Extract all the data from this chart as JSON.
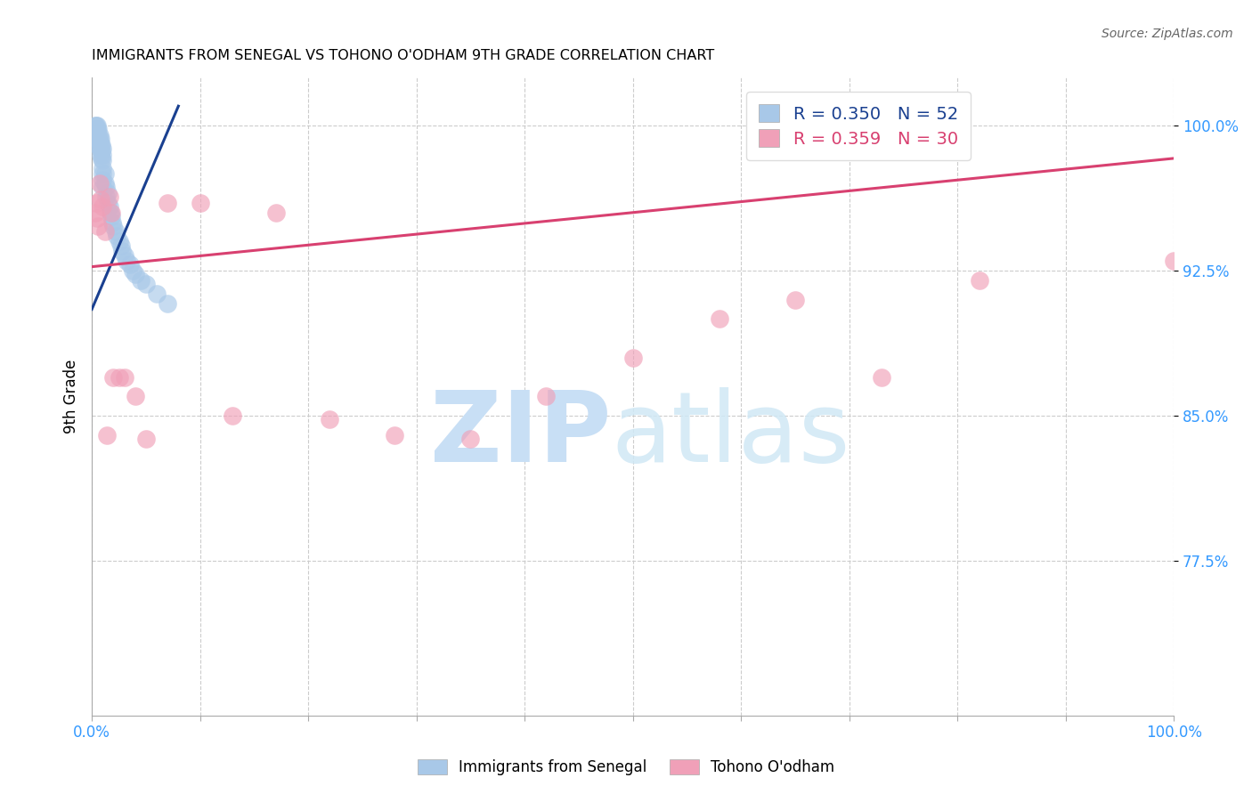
{
  "title": "IMMIGRANTS FROM SENEGAL VS TOHONO O'ODHAM 9TH GRADE CORRELATION CHART",
  "source": "Source: ZipAtlas.com",
  "ylabel": "9th Grade",
  "ytick_labels": [
    "100.0%",
    "92.5%",
    "85.0%",
    "77.5%"
  ],
  "ytick_values": [
    1.0,
    0.925,
    0.85,
    0.775
  ],
  "xlim": [
    0.0,
    1.0
  ],
  "ylim": [
    0.695,
    1.025
  ],
  "legend_blue_r": "R = 0.350",
  "legend_blue_n": "N = 52",
  "legend_pink_r": "R = 0.359",
  "legend_pink_n": "N = 30",
  "blue_color": "#a8c8e8",
  "blue_line_color": "#1a4090",
  "pink_color": "#f0a0b8",
  "pink_line_color": "#d84070",
  "blue_scatter_x": [
    0.003,
    0.003,
    0.004,
    0.004,
    0.004,
    0.005,
    0.005,
    0.005,
    0.006,
    0.006,
    0.006,
    0.007,
    0.007,
    0.007,
    0.008,
    0.008,
    0.008,
    0.009,
    0.009,
    0.009,
    0.01,
    0.01,
    0.01,
    0.01,
    0.01,
    0.01,
    0.01,
    0.012,
    0.012,
    0.013,
    0.013,
    0.015,
    0.015,
    0.016,
    0.017,
    0.018,
    0.019,
    0.02,
    0.022,
    0.023,
    0.025,
    0.027,
    0.028,
    0.03,
    0.032,
    0.035,
    0.038,
    0.04,
    0.045,
    0.05,
    0.06,
    0.07
  ],
  "blue_scatter_y": [
    1.0,
    0.995,
    1.0,
    0.998,
    0.995,
    1.0,
    0.998,
    0.993,
    0.998,
    0.995,
    0.99,
    0.995,
    0.992,
    0.988,
    0.993,
    0.99,
    0.985,
    0.99,
    0.987,
    0.983,
    0.988,
    0.985,
    0.982,
    0.978,
    0.975,
    0.972,
    0.968,
    0.975,
    0.97,
    0.968,
    0.963,
    0.965,
    0.96,
    0.958,
    0.955,
    0.953,
    0.95,
    0.948,
    0.945,
    0.943,
    0.94,
    0.938,
    0.935,
    0.933,
    0.93,
    0.928,
    0.925,
    0.923,
    0.92,
    0.918,
    0.913,
    0.908
  ],
  "pink_scatter_x": [
    0.003,
    0.004,
    0.005,
    0.006,
    0.007,
    0.008,
    0.01,
    0.012,
    0.014,
    0.016,
    0.018,
    0.02,
    0.025,
    0.03,
    0.04,
    0.05,
    0.07,
    0.1,
    0.13,
    0.17,
    0.22,
    0.28,
    0.35,
    0.42,
    0.5,
    0.58,
    0.65,
    0.73,
    0.82,
    1.0
  ],
  "pink_scatter_y": [
    0.955,
    0.96,
    0.952,
    0.948,
    0.97,
    0.962,
    0.958,
    0.945,
    0.84,
    0.963,
    0.955,
    0.87,
    0.87,
    0.87,
    0.86,
    0.838,
    0.96,
    0.96,
    0.85,
    0.955,
    0.848,
    0.84,
    0.838,
    0.86,
    0.88,
    0.9,
    0.91,
    0.87,
    0.92,
    0.93
  ],
  "blue_line_x": [
    0.0,
    0.08
  ],
  "blue_line_y": [
    0.905,
    1.01
  ],
  "pink_line_x": [
    0.0,
    1.0
  ],
  "pink_line_y": [
    0.927,
    0.983
  ],
  "grid_color": "#cccccc",
  "grid_linestyle": "--"
}
